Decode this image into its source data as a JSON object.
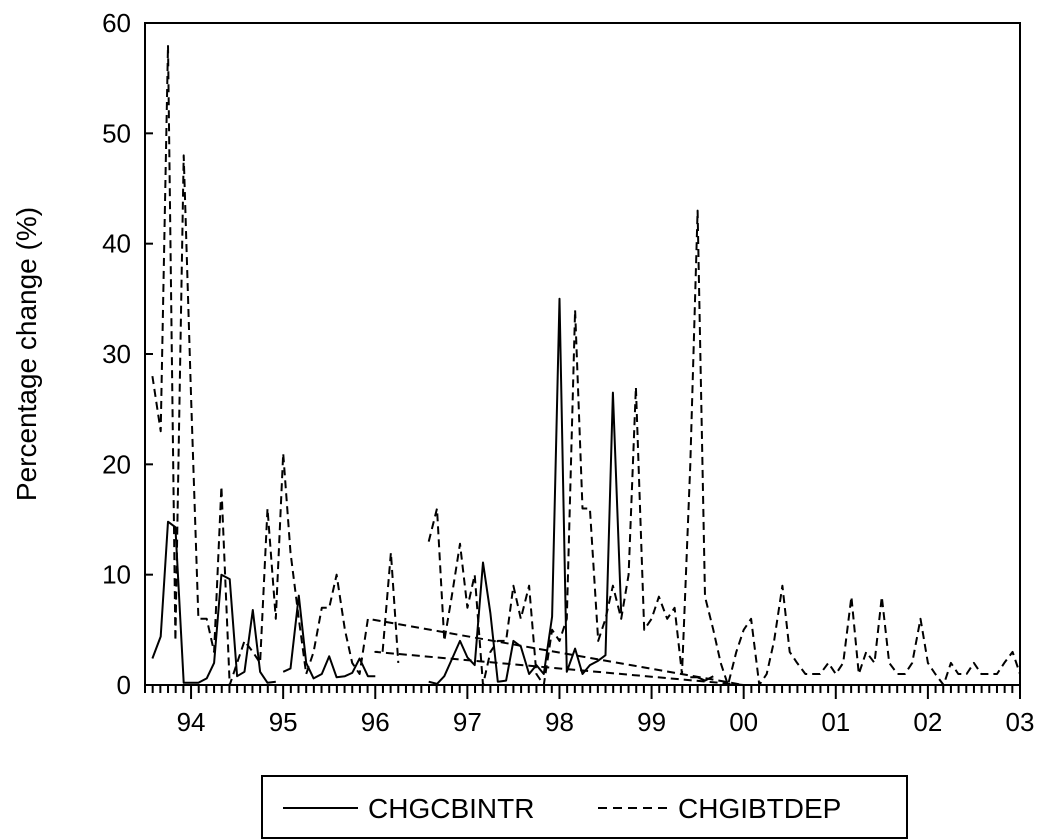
{
  "chart_data": {
    "type": "line",
    "title": "",
    "xlabel": "",
    "ylabel": "Percentage change (%)",
    "ylim": [
      0,
      60
    ],
    "yticks": [
      0,
      10,
      20,
      30,
      40,
      50,
      60
    ],
    "xlim": [
      1993.5,
      2003.0
    ],
    "xtick_labels": [
      "94",
      "95",
      "96",
      "97",
      "98",
      "99",
      "00",
      "01",
      "02",
      "03"
    ],
    "legend": {
      "placement": "bottom-center"
    },
    "series": [
      {
        "name": "CHGCBINTR",
        "style": "solid",
        "color": "#000000",
        "points": [
          [
            1993.58,
            2.4
          ],
          [
            1993.67,
            4.4
          ],
          [
            1993.75,
            14.8
          ],
          [
            1993.83,
            14.3
          ],
          [
            1993.92,
            0.2
          ],
          [
            1994.0,
            0.2
          ],
          [
            1994.08,
            0.2
          ],
          [
            1994.17,
            0.6
          ],
          [
            1994.25,
            2.0
          ],
          [
            1994.33,
            10.0
          ],
          [
            1994.42,
            9.6
          ],
          [
            1994.5,
            0.8
          ],
          [
            1994.58,
            1.2
          ],
          [
            1994.67,
            6.8
          ],
          [
            1994.75,
            1.2
          ],
          [
            1994.83,
            0.2
          ],
          [
            1994.92,
            0.3
          ],
          null,
          [
            1995.0,
            1.2
          ],
          [
            1995.08,
            1.5
          ],
          [
            1995.17,
            8.1
          ],
          [
            1995.25,
            2.0
          ],
          [
            1995.33,
            0.6
          ],
          [
            1995.42,
            1.0
          ],
          [
            1995.5,
            2.6
          ],
          [
            1995.58,
            0.7
          ],
          [
            1995.67,
            0.8
          ],
          [
            1995.75,
            1.1
          ],
          [
            1995.83,
            2.4
          ],
          [
            1995.92,
            0.8
          ],
          [
            1996.0,
            0.8
          ],
          null,
          [
            1996.58,
            0.3
          ],
          [
            1996.67,
            0.1
          ],
          [
            1996.75,
            0.8
          ],
          [
            1996.83,
            2.3
          ],
          [
            1996.92,
            4.0
          ],
          [
            1997.0,
            2.5
          ],
          [
            1997.08,
            1.8
          ],
          [
            1997.17,
            11.1
          ],
          [
            1997.25,
            6.5
          ],
          [
            1997.33,
            0.3
          ],
          [
            1997.42,
            0.4
          ],
          [
            1997.5,
            4.0
          ],
          [
            1997.58,
            3.5
          ],
          [
            1997.67,
            1.0
          ],
          [
            1997.75,
            1.8
          ],
          [
            1997.83,
            1.0
          ],
          [
            1997.92,
            6.2
          ],
          [
            1998.0,
            35.0
          ],
          [
            1998.08,
            1.2
          ],
          [
            1998.17,
            3.3
          ],
          [
            1998.25,
            1.0
          ],
          [
            1998.33,
            1.8
          ],
          [
            1998.42,
            2.2
          ],
          [
            1998.5,
            2.7
          ],
          [
            1998.58,
            26.5
          ],
          [
            1998.67,
            6.5
          ],
          null,
          [
            1999.42,
            0.7
          ],
          [
            1999.5,
            0.7
          ],
          [
            1999.58,
            0.4
          ],
          [
            1999.67,
            0.8
          ]
        ]
      },
      {
        "name": "CHGIBTDEP",
        "style": "dashed",
        "color": "#000000",
        "points": [
          [
            1993.58,
            28.0
          ],
          [
            1993.67,
            23.0
          ],
          [
            1993.75,
            58.0
          ],
          [
            1993.83,
            4.0
          ],
          [
            1993.92,
            48.0
          ],
          [
            1994.0,
            26.0
          ],
          [
            1994.08,
            6.0
          ],
          [
            1994.17,
            6.0
          ],
          [
            1994.25,
            3.0
          ],
          [
            1994.33,
            18.0
          ],
          [
            1994.42,
            0.0
          ],
          [
            1994.5,
            2.0
          ],
          [
            1994.58,
            4.0
          ],
          [
            1994.67,
            3.0
          ],
          [
            1994.75,
            2.0
          ],
          [
            1994.83,
            16.0
          ],
          [
            1994.92,
            6.0
          ],
          [
            1995.0,
            21.0
          ],
          [
            1995.08,
            12.0
          ],
          [
            1995.17,
            6.0
          ],
          [
            1995.25,
            1.0
          ],
          [
            1995.33,
            3.0
          ],
          [
            1995.42,
            7.0
          ],
          [
            1995.5,
            7.0
          ],
          [
            1995.58,
            10.0
          ],
          [
            1995.67,
            5.0
          ],
          [
            1995.75,
            2.0
          ],
          [
            1995.83,
            1.0
          ],
          [
            1995.92,
            6.0
          ],
          [
            2000.0,
            0.0
          ],
          [
            1996.0,
            3.0
          ],
          [
            1996.08,
            3.0
          ],
          [
            1996.17,
            12.0
          ],
          [
            1996.25,
            2.0
          ],
          null,
          [
            1996.58,
            13.0
          ],
          [
            1996.67,
            16.0
          ],
          [
            1996.75,
            4.0
          ],
          [
            1996.83,
            8.0
          ],
          [
            1996.92,
            12.8
          ],
          [
            1997.0,
            7.0
          ],
          [
            1997.08,
            10.0
          ],
          [
            1997.17,
            0.0
          ],
          [
            1997.25,
            3.0
          ],
          [
            1997.33,
            4.0
          ],
          [
            1997.42,
            4.0
          ],
          [
            1997.5,
            9.0
          ],
          [
            1997.58,
            6.0
          ],
          [
            1997.67,
            9.0
          ],
          [
            1997.75,
            1.0
          ],
          [
            1997.83,
            0.0
          ],
          [
            1997.92,
            5.0
          ],
          [
            1998.0,
            4.0
          ],
          [
            1998.08,
            6.0
          ],
          [
            1998.17,
            34.0
          ],
          [
            1998.25,
            16.0
          ],
          [
            1998.33,
            16.0
          ],
          [
            1998.42,
            4.0
          ],
          [
            1998.5,
            6.0
          ],
          [
            1998.58,
            9.0
          ],
          [
            1998.67,
            6.0
          ],
          [
            1998.75,
            10.0
          ],
          [
            1998.83,
            27.0
          ],
          [
            1998.92,
            5.0
          ],
          [
            1999.0,
            6.0
          ],
          [
            1999.08,
            8.0
          ],
          [
            1999.17,
            6.0
          ],
          [
            1999.25,
            7.0
          ],
          [
            1999.33,
            1.0
          ],
          [
            1999.42,
            20.0
          ],
          [
            1999.5,
            43.0
          ],
          [
            1999.58,
            8.0
          ],
          [
            1999.67,
            5.0
          ],
          [
            1999.75,
            2.0
          ],
          [
            1999.83,
            0.0
          ],
          [
            1999.92,
            3.0
          ],
          [
            2000.0,
            5.0
          ],
          [
            2000.08,
            6.0
          ],
          [
            2000.17,
            0.0
          ],
          [
            2000.25,
            1.0
          ],
          [
            2000.33,
            4.0
          ],
          [
            2000.42,
            9.0
          ],
          [
            2000.5,
            3.0
          ],
          [
            2000.58,
            2.0
          ],
          [
            2000.67,
            1.0
          ],
          [
            2000.75,
            1.0
          ],
          [
            2000.83,
            1.0
          ],
          [
            2000.92,
            2.0
          ],
          [
            2001.0,
            1.0
          ],
          [
            2001.08,
            2.0
          ],
          [
            2001.17,
            8.0
          ],
          [
            2001.25,
            1.0
          ],
          [
            2001.33,
            3.0
          ],
          [
            2001.42,
            2.0
          ],
          [
            2001.5,
            8.0
          ],
          [
            2001.58,
            2.0
          ],
          [
            2001.67,
            1.0
          ],
          [
            2001.75,
            1.0
          ],
          [
            2001.83,
            2.0
          ],
          [
            2001.92,
            6.0
          ],
          [
            2002.0,
            2.0
          ],
          [
            2002.08,
            1.0
          ],
          [
            2002.17,
            0.0
          ],
          [
            2002.25,
            2.0
          ],
          [
            2002.33,
            1.0
          ],
          [
            2002.42,
            1.0
          ],
          [
            2002.5,
            2.0
          ],
          [
            2002.58,
            1.0
          ],
          [
            2002.67,
            1.0
          ],
          [
            2002.75,
            1.0
          ],
          [
            2002.83,
            2.0
          ],
          [
            2002.92,
            3.0
          ],
          [
            2003.0,
            1.0
          ]
        ]
      }
    ]
  }
}
